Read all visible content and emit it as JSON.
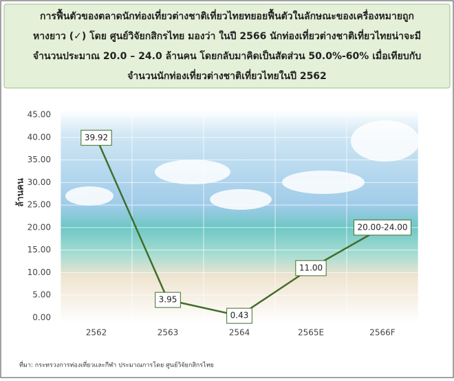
{
  "header": {
    "lines": [
      "การฟื้นตัวของตลาดนักท่องเที่ยวต่างชาติเที่ยวไทยทยอยฟื้นตัวในลักษณะของเครื่องหมายถูก",
      "หางยาว (✓) โดย ศูนย์วิจัยกสิกรไทย มองว่า ในปี 2566 นักท่องเที่ยวต่างชาติเที่ยวไทยน่าจะมี",
      "จำนวนประมาณ 20.0 – 24.0 ล้านคน โดยกลับมาคิดเป็นสัดส่วน 50.0%-60% เมื่อเทียบกับ",
      "จำนวนนักท่องเที่ยวต่างชาติเที่ยวไทยในปี 2562"
    ]
  },
  "chart_data": {
    "type": "line",
    "y_label": "ล้านคน",
    "categories": [
      "2562",
      "2563",
      "2564",
      "2565E",
      "2566F"
    ],
    "values": [
      39.92,
      3.95,
      0.43,
      11.0,
      20.0
    ],
    "value_labels": [
      "39.92",
      "3.95",
      "0.43",
      "11.00",
      "20.00-24.00"
    ],
    "color": "#3f6e2a",
    "ylim": [
      0,
      45
    ],
    "yticks": [
      {
        "value": 0,
        "label": "0.00"
      },
      {
        "value": 5,
        "label": "5.00"
      },
      {
        "value": 10,
        "label": "10.00"
      },
      {
        "value": 15,
        "label": "15.00"
      },
      {
        "value": 20,
        "label": "20.00"
      },
      {
        "value": 25,
        "label": "25.00"
      },
      {
        "value": 30,
        "label": "30.00"
      },
      {
        "value": 35,
        "label": "35.00"
      },
      {
        "value": 40,
        "label": "40.00"
      },
      {
        "value": 45,
        "label": "45.00"
      }
    ],
    "grid": true
  },
  "source": "ที่มา: กระทรวงการท่องเที่ยวและกีฬา ประมาณการโดย ศูนย์วิจัยกสิกรไทย"
}
